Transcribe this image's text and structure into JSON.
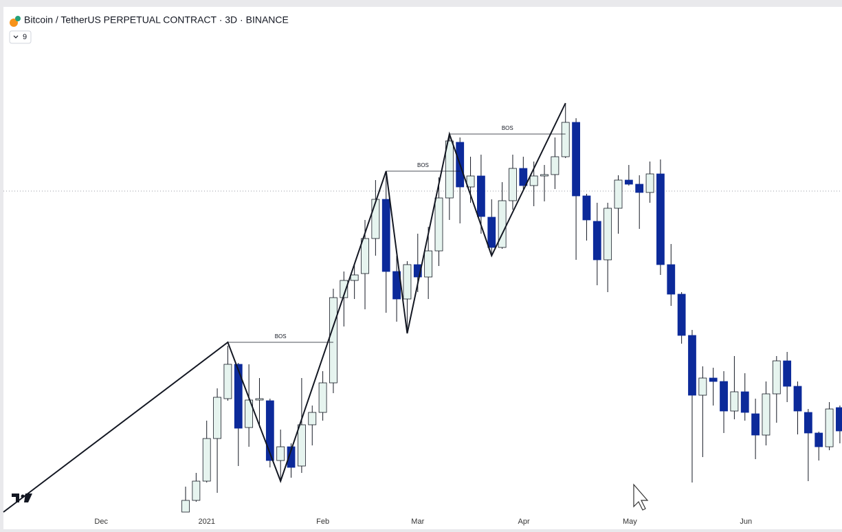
{
  "chart_data": {
    "type": "candlestick",
    "title": "Bitcoin / TetherUS PERPETUAL CONTRACT · 3D · BINANCE",
    "indicator_count": "9",
    "up_color": "#e6f4ef",
    "down_color": "#0c2a9a",
    "xlim": [
      -17.26,
      62.2
    ],
    "ylim": [
      26125,
      73575
    ],
    "xticks": [
      {
        "value": -8,
        "label": "Dec"
      },
      {
        "value": 2,
        "label": "2021"
      },
      {
        "value": 13,
        "label": "Feb"
      },
      {
        "value": 22,
        "label": "Mar"
      },
      {
        "value": 32.05,
        "label": "Apr"
      },
      {
        "value": 42.1,
        "label": "May"
      },
      {
        "value": 53.1,
        "label": "Jun"
      }
    ],
    "open": [
      26125,
      27230,
      29050,
      33080,
      36850,
      40100,
      34120,
      36720,
      36655,
      31000,
      32300,
      30480,
      34380,
      35550,
      38345,
      46405,
      48030,
      48680,
      51995,
      55700,
      48875,
      46275,
      49525,
      48355,
      50825,
      55830,
      61095,
      56870,
      57910,
      54010,
      51150,
      55570,
      58625,
      57000,
      57910,
      58040,
      59730,
      62980,
      56025,
      53620,
      49980,
      54855,
      57520,
      57130,
      56350,
      58105,
      49525,
      46730,
      42830,
      37175,
      38800,
      38475,
      35680,
      37500,
      35420,
      33405,
      37305,
      40425,
      38020,
      35550,
      33600,
      32300,
      36005
    ],
    "high": [
      28530,
      29830,
      34770,
      37825,
      41855,
      40230,
      40100,
      38800,
      36850,
      33925,
      32625,
      38800,
      36200,
      39450,
      47250,
      48875,
      49525,
      53750,
      57520,
      58300,
      50370,
      49850,
      52450,
      53100,
      57780,
      61875,
      61550,
      59730,
      59925,
      55700,
      57325,
      59925,
      59730,
      59275,
      58950,
      61550,
      64800,
      63370,
      56220,
      55375,
      55375,
      57975,
      58950,
      57975,
      59275,
      59470,
      51475,
      46925,
      43350,
      39905,
      39775,
      39450,
      40880,
      39255,
      36850,
      38475,
      40880,
      41270,
      38475,
      35875,
      33730,
      36525,
      36200
    ],
    "low": [
      26125,
      27100,
      28920,
      27945,
      36655,
      30480,
      32300,
      34120,
      30350,
      29050,
      29375,
      29830,
      32430,
      34770,
      37370,
      43675,
      46275,
      45300,
      50370,
      44975,
      44130,
      43025,
      46925,
      46275,
      49395,
      53750,
      53425,
      55375,
      52450,
      50500,
      51020,
      54725,
      56675,
      55050,
      55505,
      56675,
      59600,
      49980,
      51800,
      47575,
      46925,
      52450,
      57000,
      52905,
      55375,
      48550,
      45625,
      42050,
      28920,
      31325,
      36200,
      33600,
      34900,
      34770,
      31130,
      32430,
      34575,
      36525,
      33470,
      29050,
      31000,
      31975,
      32625
    ],
    "close": [
      27230,
      29050,
      33080,
      36980,
      40100,
      34055,
      36720,
      36850,
      31000,
      32300,
      30350,
      34380,
      35550,
      38345,
      46405,
      48030,
      48550,
      51995,
      55700,
      48875,
      46275,
      49525,
      48355,
      50825,
      55830,
      61225,
      56870,
      57910,
      54075,
      51150,
      55570,
      58625,
      57000,
      57910,
      58040,
      59730,
      62980,
      56025,
      53750,
      49980,
      54855,
      57520,
      57130,
      56350,
      58105,
      49525,
      46730,
      42830,
      37175,
      38800,
      38475,
      35680,
      37500,
      35550,
      33405,
      37305,
      40425,
      38020,
      35680,
      33600,
      32300,
      35875,
      33795
    ],
    "zigzag": {
      "x": [
        -17.26,
        4,
        9,
        19,
        21,
        25,
        29,
        36
      ],
      "values": [
        26125,
        42180,
        29050,
        58365,
        43025,
        61875,
        50370,
        64800
      ]
    },
    "bos": [
      {
        "label": "BOS",
        "from": 4,
        "to": 14,
        "value": 42180
      },
      {
        "label": "BOS",
        "from": 19,
        "to": 26,
        "value": 58365
      },
      {
        "label": "BOS",
        "from": 25,
        "to": 36,
        "value": 61875
      }
    ],
    "price_line": 56480
  }
}
